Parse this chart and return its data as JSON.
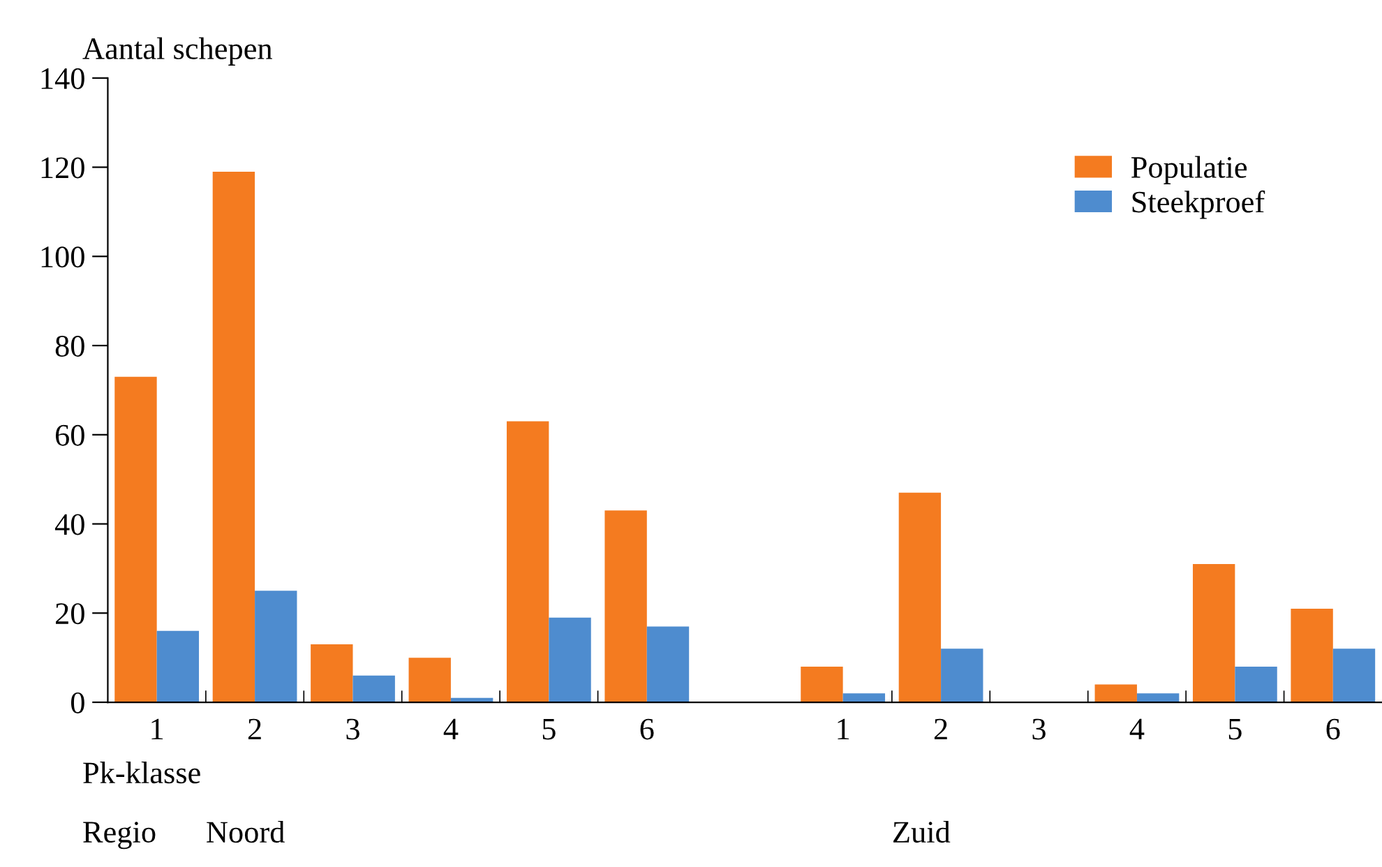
{
  "chart_data": {
    "type": "bar",
    "ylabel": "Aantal schepen",
    "xlabel": "Pk-klasse",
    "categories": [
      "1",
      "2",
      "3",
      "4",
      "5",
      "6",
      null,
      "1",
      "2",
      "3",
      "4",
      "5",
      "6"
    ],
    "series": [
      {
        "name": "Populatie",
        "color": "#f47b20",
        "values": [
          73,
          119,
          13,
          10,
          63,
          43,
          null,
          8,
          47,
          0,
          4,
          31,
          21
        ]
      },
      {
        "name": "Steekproef",
        "color": "#4e8ccf",
        "values": [
          16,
          25,
          6,
          1,
          19,
          17,
          null,
          2,
          12,
          0,
          2,
          8,
          12
        ]
      }
    ],
    "ylim": [
      0,
      140
    ],
    "yticks": [
      0,
      20,
      40,
      60,
      80,
      100,
      120,
      140
    ],
    "annotations": [
      "Regio",
      "Noord",
      "Zuid"
    ],
    "legend": "top right",
    "grid": false
  }
}
